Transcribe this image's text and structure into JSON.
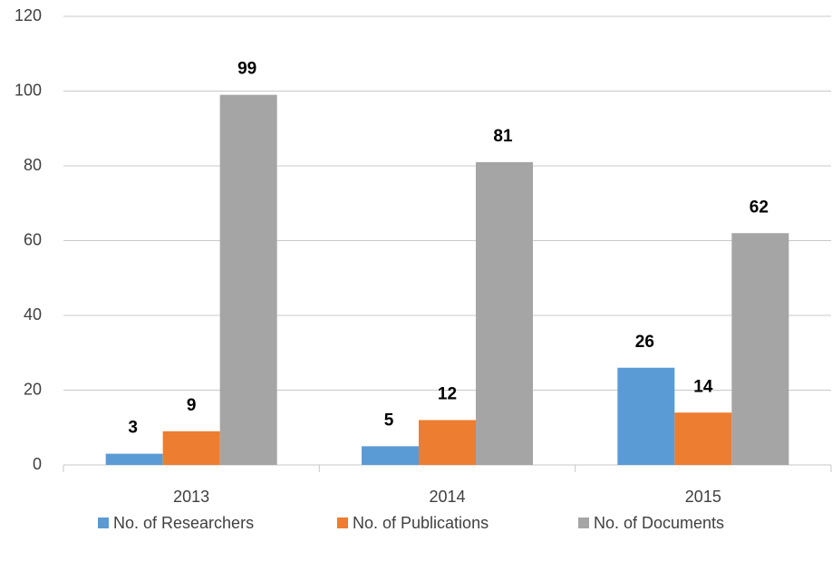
{
  "chart_data": {
    "type": "bar",
    "categories": [
      "2013",
      "2014",
      "2015"
    ],
    "series": [
      {
        "name": "No. of Researchers",
        "color": "#5b9bd5",
        "values": [
          3,
          5,
          26
        ]
      },
      {
        "name": "No. of Publications",
        "color": "#ed7d31",
        "values": [
          9,
          12,
          14
        ]
      },
      {
        "name": "No. of Documents",
        "color": "#a5a5a5",
        "values": [
          99,
          81,
          62
        ]
      }
    ],
    "ylim": [
      0,
      120
    ],
    "yticks": [
      0,
      20,
      40,
      60,
      80,
      100,
      120
    ],
    "grid": true,
    "legend": "bottom"
  }
}
